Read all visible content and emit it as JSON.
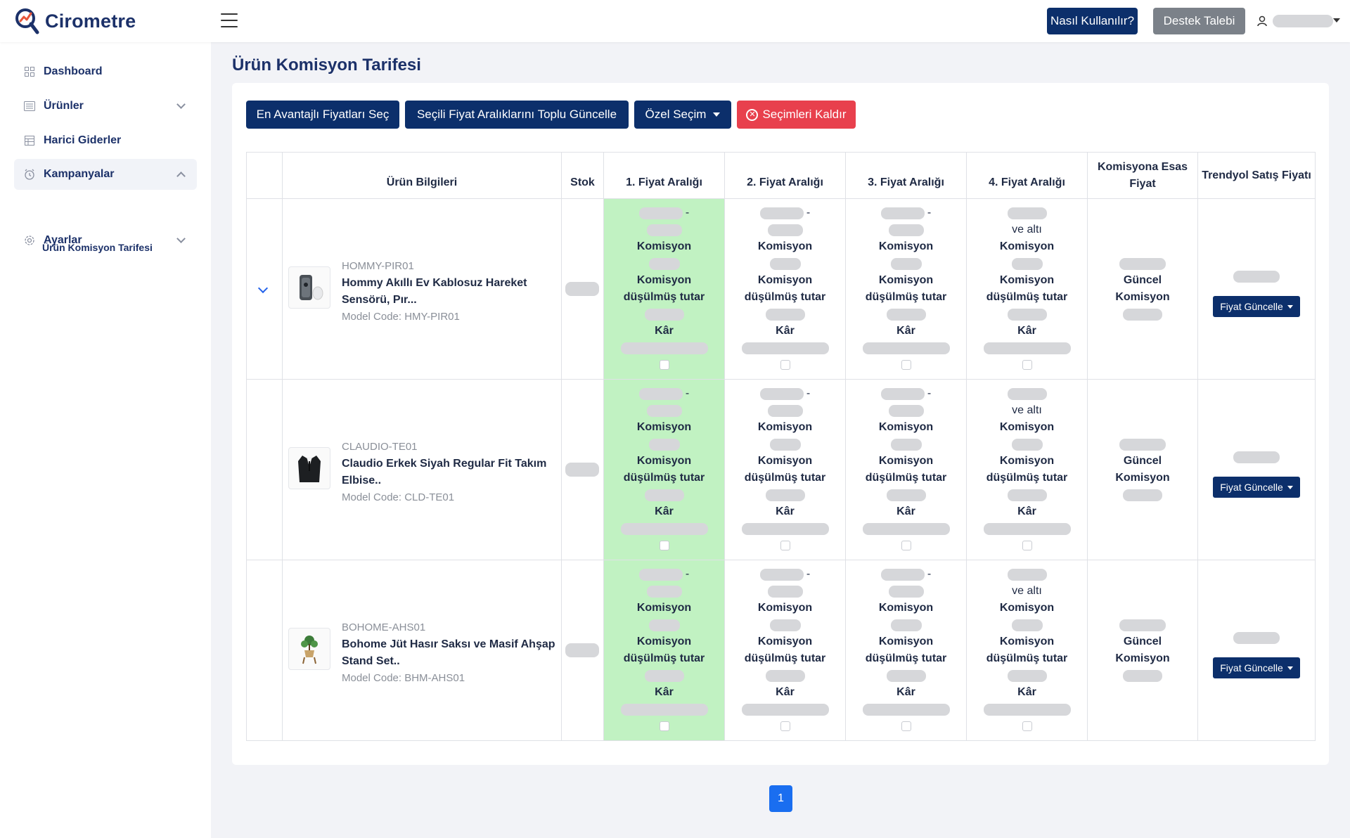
{
  "app": {
    "name": "Cirometre"
  },
  "header": {
    "help_label": "Nasıl Kullanılır?",
    "support_label": "Destek Talebi"
  },
  "sidebar": {
    "items": [
      {
        "label": "Dashboard",
        "icon": "grid-icon"
      },
      {
        "label": "Ürünler",
        "icon": "list-icon"
      },
      {
        "label": "Harici Giderler",
        "icon": "table-icon"
      },
      {
        "label": "Kampanyalar",
        "icon": "alarm-clock-icon"
      },
      {
        "label": "Ayarlar",
        "icon": "gear-icon"
      }
    ],
    "sub_items": [
      {
        "label": "Ürün Komisyon Tarifesi"
      }
    ]
  },
  "page": {
    "title": "Ürün Komisyon Tarifesi"
  },
  "toolbar": {
    "best_price_label": "En Avantajlı Fiyatları Seç",
    "bulk_update_label": "Seçili Fiyat Aralıklarını Toplu Güncelle",
    "custom_select_label": "Özel Seçim",
    "clear_label": "Seçimleri Kaldır"
  },
  "table": {
    "headers": {
      "product": "Ürün Bilgileri",
      "stock": "Stok",
      "range1": "1. Fiyat Aralığı",
      "range2": "2. Fiyat Aralığı",
      "range3": "3. Fiyat Aralığı",
      "range4": "4. Fiyat Aralığı",
      "esas": "Komisyona Esas Fiyat",
      "trendyol": "Trendyol Satış Fiyatı"
    },
    "labels": {
      "commission": "Komisyon",
      "net_line1": "Komisyon",
      "net_line2": "düşülmüş tutar",
      "profit": "Kâr",
      "and_below": "ve altı",
      "current_line1": "Güncel",
      "current_line2": "Komisyon",
      "update_price": "Fiyat Güncelle"
    },
    "rows": [
      {
        "sku": "HOMMY-PIR01",
        "name": "Hommy Akıllı Ev Kablosuz Hareket Sensörü, Pır...",
        "model": "Model Code: HMY-PIR01",
        "image": "motion-sensor-image",
        "expanded": true,
        "selected_range": 1
      },
      {
        "sku": "CLAUDIO-TE01",
        "name": "Claudio Erkek Siyah Regular Fit Takım Elbise..",
        "model": "Model Code: CLD-TE01",
        "image": "suit-image",
        "expanded": false,
        "selected_range": 1
      },
      {
        "sku": "BOHOME-AHS01",
        "name": "Bohome Jüt Hasır Saksı ve Masif Ahşap Stand Set..",
        "model": "Model Code: BHM-AHS01",
        "image": "plant-pot-image",
        "expanded": false,
        "selected_range": 1
      }
    ]
  },
  "pagination": {
    "current": "1"
  },
  "colors": {
    "primary": "#0c2f6b",
    "danger": "#e8404d",
    "highlight": "#c1f2c2",
    "page_active": "#1a6ef0",
    "support": "#7b8189"
  }
}
